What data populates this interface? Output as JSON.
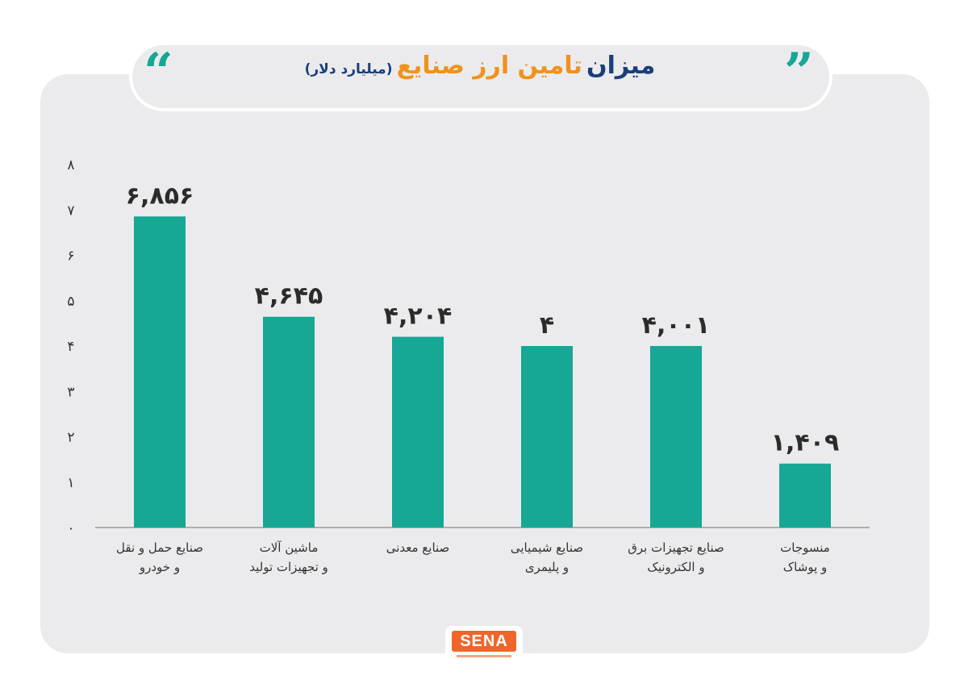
{
  "colors": {
    "bar": "#16a795",
    "title_main": "#1b3e7a",
    "title_accent": "#f0921a",
    "panel": "#ebebed",
    "logo": "#f0652a"
  },
  "header": {
    "title_main": "میزان",
    "title_accent": "تامین ارز صنایع",
    "title_unit": "(میلیارد دلار)",
    "quote_left": "“",
    "quote_right": "”"
  },
  "logo": {
    "text": "SENA"
  },
  "chart_data": {
    "type": "bar",
    "title": "میزان تامین ارز صنایع (میلیارد دلار)",
    "ylim": [
      0,
      8
    ],
    "yticks": [
      0,
      1,
      2,
      3,
      4,
      5,
      6,
      7,
      8
    ],
    "ytick_labels": [
      "۰",
      "۱",
      "۲",
      "۳",
      "۴",
      "۵",
      "۶",
      "۷",
      "۸"
    ],
    "grid": false,
    "categories": [
      [
        "صنایع حمل و نقل",
        "و خودرو"
      ],
      [
        "ماشین آلات",
        "و تجهیزات تولید"
      ],
      [
        "صنایع معدنی"
      ],
      [
        "صنایع شیمیایی",
        "و پلیمری"
      ],
      [
        "صنایع تجهیزات برق",
        "و الکترونیک"
      ],
      [
        "منسوجات",
        "و پوشاک"
      ]
    ],
    "values": [
      6.856,
      4.645,
      4.204,
      4,
      4.001,
      1.409
    ],
    "value_labels": [
      "۶,۸۵۶",
      "۴,۶۴۵",
      "۴,۲۰۴",
      "۴",
      "۴,۰۰۱",
      "۱,۴۰۹"
    ]
  }
}
